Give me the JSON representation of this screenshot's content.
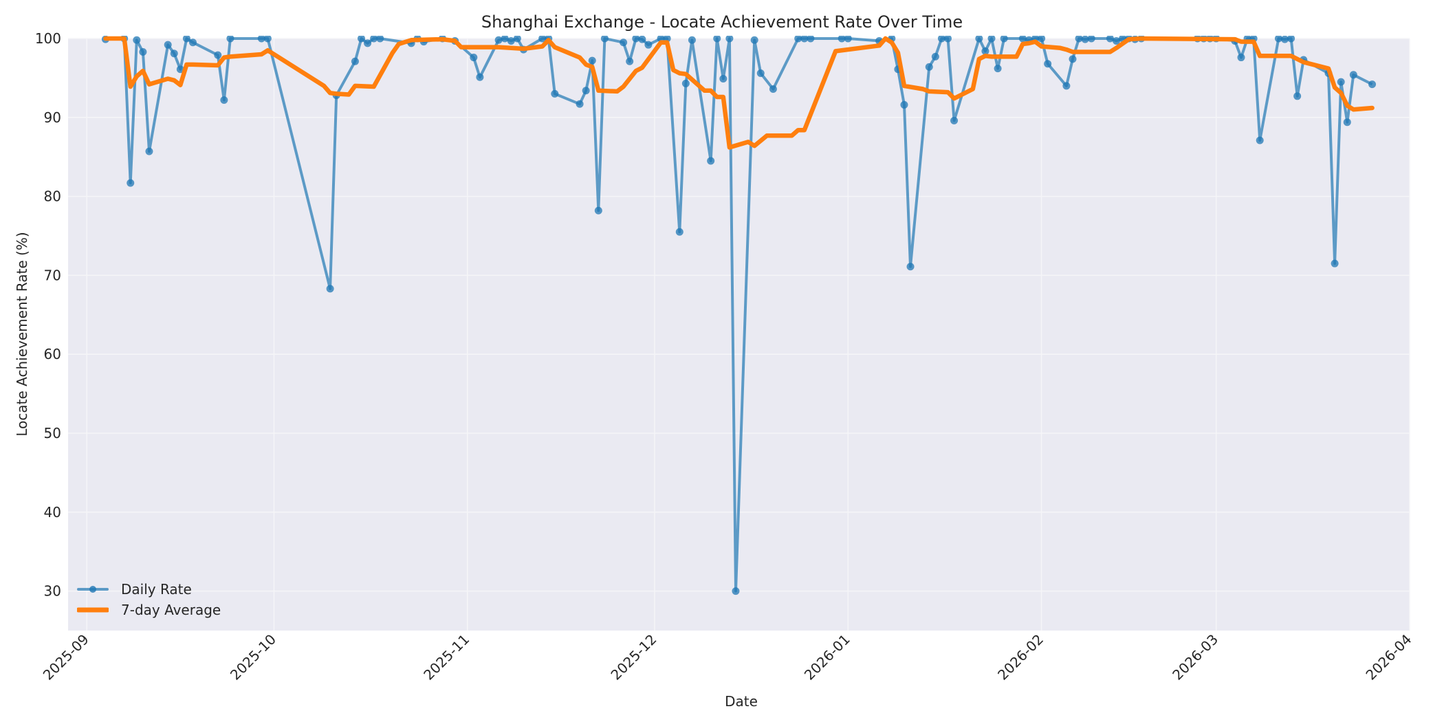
{
  "chart_data": {
    "type": "line",
    "title": "Shanghai Exchange - Locate Achievement Rate Over Time",
    "xlabel": "Date",
    "ylabel": "Locate Achievement Rate (%)",
    "ylim": [
      25,
      100
    ],
    "xlim": [
      "2025-08-29",
      "2026-04-01"
    ],
    "grid": true,
    "legend_position": "lower left",
    "x_ticks": [
      "2025-09",
      "2025-10",
      "2025-11",
      "2025-12",
      "2026-01",
      "2026-02",
      "2026-03",
      "2026-04"
    ],
    "y_ticks": [
      30,
      40,
      50,
      60,
      70,
      80,
      90,
      100
    ],
    "colors": {
      "daily": "#1f77b4",
      "average": "#ff7f0e",
      "plot_bg": "#eaeaf2",
      "grid": "#f5f5f8"
    },
    "series": [
      {
        "name": "Daily Rate",
        "style": "line+markers",
        "points": [
          [
            "2025-09-04",
            99.9
          ],
          [
            "2025-09-07",
            100.0
          ],
          [
            "2025-09-08",
            81.7
          ],
          [
            "2025-09-09",
            99.8
          ],
          [
            "2025-09-10",
            98.3
          ],
          [
            "2025-09-11",
            85.7
          ],
          [
            "2025-09-14",
            99.2
          ],
          [
            "2025-09-15",
            98.1
          ],
          [
            "2025-09-16",
            96.1
          ],
          [
            "2025-09-17",
            100.0
          ],
          [
            "2025-09-18",
            99.5
          ],
          [
            "2025-09-22",
            97.9
          ],
          [
            "2025-09-23",
            92.2
          ],
          [
            "2025-09-24",
            100.0
          ],
          [
            "2025-09-29",
            100.0
          ],
          [
            "2025-09-30",
            100.0
          ],
          [
            "2025-10-10",
            68.3
          ],
          [
            "2025-10-11",
            92.8
          ],
          [
            "2025-10-14",
            97.1
          ],
          [
            "2025-10-15",
            100.0
          ],
          [
            "2025-10-16",
            99.4
          ],
          [
            "2025-10-17",
            100.0
          ],
          [
            "2025-10-18",
            100.0
          ],
          [
            "2025-10-23",
            99.4
          ],
          [
            "2025-10-24",
            100.0
          ],
          [
            "2025-10-25",
            99.6
          ],
          [
            "2025-10-28",
            100.0
          ],
          [
            "2025-10-30",
            99.7
          ],
          [
            "2025-11-02",
            97.6
          ],
          [
            "2025-11-03",
            95.1
          ],
          [
            "2025-11-06",
            99.8
          ],
          [
            "2025-11-07",
            100.0
          ],
          [
            "2025-11-08",
            99.7
          ],
          [
            "2025-11-09",
            100.0
          ],
          [
            "2025-11-10",
            98.6
          ],
          [
            "2025-11-13",
            100.0
          ],
          [
            "2025-11-14",
            100.0
          ],
          [
            "2025-11-15",
            93.0
          ],
          [
            "2025-11-19",
            91.7
          ],
          [
            "2025-11-20",
            93.4
          ],
          [
            "2025-11-21",
            97.2
          ],
          [
            "2025-11-22",
            78.2
          ],
          [
            "2025-11-23",
            100.0
          ],
          [
            "2025-11-26",
            99.5
          ],
          [
            "2025-11-27",
            97.1
          ],
          [
            "2025-11-28",
            100.0
          ],
          [
            "2025-11-29",
            99.9
          ],
          [
            "2025-11-30",
            99.2
          ],
          [
            "2025-12-02",
            100.0
          ],
          [
            "2025-12-03",
            100.0
          ],
          [
            "2025-12-05",
            75.5
          ],
          [
            "2025-12-06",
            94.3
          ],
          [
            "2025-12-07",
            99.8
          ],
          [
            "2025-12-10",
            84.5
          ],
          [
            "2025-12-11",
            100.0
          ],
          [
            "2025-12-12",
            94.9
          ],
          [
            "2025-12-13",
            100.0
          ],
          [
            "2025-12-14",
            30.0
          ],
          [
            "2025-12-17",
            99.8
          ],
          [
            "2025-12-18",
            95.6
          ],
          [
            "2025-12-20",
            93.6
          ],
          [
            "2025-12-24",
            100.0
          ],
          [
            "2025-12-25",
            100.0
          ],
          [
            "2025-12-26",
            100.0
          ],
          [
            "2025-12-31",
            100.0
          ],
          [
            "2026-01-01",
            100.0
          ],
          [
            "2026-01-06",
            99.7
          ],
          [
            "2026-01-08",
            100.0
          ],
          [
            "2026-01-09",
            96.1
          ],
          [
            "2026-01-10",
            91.6
          ],
          [
            "2026-01-11",
            71.1
          ],
          [
            "2026-01-14",
            96.4
          ],
          [
            "2026-01-15",
            97.7
          ],
          [
            "2026-01-16",
            100.0
          ],
          [
            "2026-01-17",
            100.0
          ],
          [
            "2026-01-18",
            89.6
          ],
          [
            "2026-01-22",
            100.0
          ],
          [
            "2026-01-23",
            98.4
          ],
          [
            "2026-01-24",
            100.0
          ],
          [
            "2026-01-25",
            96.2
          ],
          [
            "2026-01-26",
            100.0
          ],
          [
            "2026-01-29",
            100.0
          ],
          [
            "2026-01-30",
            99.8
          ],
          [
            "2026-01-31",
            100.0
          ],
          [
            "2026-02-01",
            100.0
          ],
          [
            "2026-02-02",
            96.8
          ],
          [
            "2026-02-05",
            94.0
          ],
          [
            "2026-02-06",
            97.4
          ],
          [
            "2026-02-07",
            100.0
          ],
          [
            "2026-02-08",
            99.9
          ],
          [
            "2026-02-09",
            100.0
          ],
          [
            "2026-02-12",
            100.0
          ],
          [
            "2026-02-13",
            99.7
          ],
          [
            "2026-02-14",
            100.0
          ],
          [
            "2026-02-15",
            100.0
          ],
          [
            "2026-02-16",
            99.9
          ],
          [
            "2026-02-17",
            100.0
          ],
          [
            "2026-02-26",
            100.0
          ],
          [
            "2026-02-27",
            100.0
          ],
          [
            "2026-02-28",
            100.0
          ],
          [
            "2026-03-01",
            100.0
          ],
          [
            "2026-03-04",
            99.7
          ],
          [
            "2026-03-05",
            97.6
          ],
          [
            "2026-03-06",
            100.0
          ],
          [
            "2026-03-07",
            100.0
          ],
          [
            "2026-03-08",
            87.1
          ],
          [
            "2026-03-11",
            100.0
          ],
          [
            "2026-03-12",
            99.9
          ],
          [
            "2026-03-13",
            100.0
          ],
          [
            "2026-03-14",
            92.7
          ],
          [
            "2026-03-15",
            97.3
          ],
          [
            "2026-03-19",
            95.6
          ],
          [
            "2026-03-20",
            71.5
          ],
          [
            "2026-03-21",
            94.5
          ],
          [
            "2026-03-22",
            89.4
          ],
          [
            "2026-03-23",
            95.4
          ],
          [
            "2026-03-26",
            94.2
          ]
        ]
      },
      {
        "name": "7-day Average",
        "style": "line",
        "points": [
          [
            "2025-09-04",
            100.0
          ],
          [
            "2025-09-07",
            100.0
          ],
          [
            "2025-09-08",
            93.9
          ],
          [
            "2025-09-09",
            95.2
          ],
          [
            "2025-09-10",
            95.9
          ],
          [
            "2025-09-11",
            94.2
          ],
          [
            "2025-09-14",
            94.9
          ],
          [
            "2025-09-15",
            94.7
          ],
          [
            "2025-09-16",
            94.1
          ],
          [
            "2025-09-17",
            96.7
          ],
          [
            "2025-09-18",
            96.7
          ],
          [
            "2025-09-22",
            96.6
          ],
          [
            "2025-09-23",
            97.6
          ],
          [
            "2025-09-24",
            97.7
          ],
          [
            "2025-09-29",
            98.0
          ],
          [
            "2025-09-30",
            98.5
          ],
          [
            "2025-10-09",
            94.0
          ],
          [
            "2025-10-10",
            93.1
          ],
          [
            "2025-10-11",
            93.0
          ],
          [
            "2025-10-13",
            92.9
          ],
          [
            "2025-10-14",
            94.0
          ],
          [
            "2025-10-17",
            93.9
          ],
          [
            "2025-10-20",
            98.2
          ],
          [
            "2025-10-21",
            99.3
          ],
          [
            "2025-10-23",
            99.8
          ],
          [
            "2025-10-28",
            99.9
          ],
          [
            "2025-10-30",
            99.7
          ],
          [
            "2025-10-31",
            98.9
          ],
          [
            "2025-11-06",
            98.9
          ],
          [
            "2025-11-10",
            98.7
          ],
          [
            "2025-11-13",
            99.0
          ],
          [
            "2025-11-14",
            99.8
          ],
          [
            "2025-11-15",
            98.9
          ],
          [
            "2025-11-19",
            97.6
          ],
          [
            "2025-11-20",
            96.7
          ],
          [
            "2025-11-21",
            96.4
          ],
          [
            "2025-11-22",
            93.4
          ],
          [
            "2025-11-25",
            93.3
          ],
          [
            "2025-11-26",
            93.9
          ],
          [
            "2025-11-28",
            95.9
          ],
          [
            "2025-11-29",
            96.3
          ],
          [
            "2025-12-02",
            99.5
          ],
          [
            "2025-12-03",
            99.5
          ],
          [
            "2025-12-04",
            96.0
          ],
          [
            "2025-12-05",
            95.6
          ],
          [
            "2025-12-06",
            95.5
          ],
          [
            "2025-12-09",
            93.4
          ],
          [
            "2025-12-10",
            93.4
          ],
          [
            "2025-12-11",
            92.6
          ],
          [
            "2025-12-12",
            92.6
          ],
          [
            "2025-12-13",
            86.2
          ],
          [
            "2025-12-16",
            86.9
          ],
          [
            "2025-12-17",
            86.4
          ],
          [
            "2025-12-19",
            87.7
          ],
          [
            "2025-12-23",
            87.7
          ],
          [
            "2025-12-24",
            88.4
          ],
          [
            "2025-12-25",
            88.4
          ],
          [
            "2025-12-30",
            98.4
          ],
          [
            "2026-01-06",
            99.1
          ],
          [
            "2026-01-07",
            100.0
          ],
          [
            "2026-01-08",
            99.5
          ],
          [
            "2026-01-09",
            98.2
          ],
          [
            "2026-01-10",
            94.0
          ],
          [
            "2026-01-13",
            93.6
          ],
          [
            "2026-01-14",
            93.3
          ],
          [
            "2026-01-17",
            93.2
          ],
          [
            "2026-01-18",
            92.4
          ],
          [
            "2026-01-21",
            93.6
          ],
          [
            "2026-01-22",
            97.4
          ],
          [
            "2026-01-23",
            97.8
          ],
          [
            "2026-01-24",
            97.7
          ],
          [
            "2026-01-28",
            97.7
          ],
          [
            "2026-01-29",
            99.3
          ],
          [
            "2026-01-30",
            99.4
          ],
          [
            "2026-01-31",
            99.6
          ],
          [
            "2026-02-01",
            99.0
          ],
          [
            "2026-02-04",
            98.8
          ],
          [
            "2026-02-05",
            98.6
          ],
          [
            "2026-02-06",
            98.3
          ],
          [
            "2026-02-12",
            98.3
          ],
          [
            "2026-02-13",
            98.8
          ],
          [
            "2026-02-15",
            99.9
          ],
          [
            "2026-02-17",
            100.0
          ],
          [
            "2026-03-04",
            99.9
          ],
          [
            "2026-03-05",
            99.6
          ],
          [
            "2026-03-07",
            99.6
          ],
          [
            "2026-03-08",
            97.8
          ],
          [
            "2026-03-13",
            97.8
          ],
          [
            "2026-03-15",
            97.0
          ],
          [
            "2026-03-16",
            96.8
          ],
          [
            "2026-03-19",
            96.2
          ],
          [
            "2026-03-20",
            93.8
          ],
          [
            "2026-03-21",
            93.1
          ],
          [
            "2026-03-22",
            91.5
          ],
          [
            "2026-03-23",
            91.0
          ],
          [
            "2026-03-26",
            91.2
          ]
        ]
      }
    ]
  },
  "legend": {
    "items": [
      {
        "label": "Daily Rate",
        "color": "#1f77b4"
      },
      {
        "label": "7-day Average",
        "color": "#ff7f0e"
      }
    ]
  }
}
